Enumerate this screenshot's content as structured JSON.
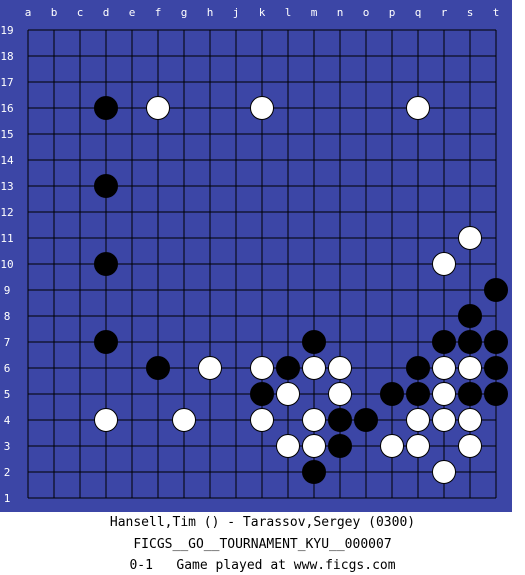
{
  "board": {
    "size": 19,
    "columns": [
      "a",
      "b",
      "c",
      "d",
      "e",
      "f",
      "g",
      "h",
      "j",
      "k",
      "l",
      "m",
      "n",
      "o",
      "p",
      "q",
      "r",
      "s",
      "t"
    ],
    "rows": [
      "19",
      "18",
      "17",
      "16",
      "15",
      "14",
      "13",
      "12",
      "11",
      "10",
      "9",
      "8",
      "7",
      "6",
      "5",
      "4",
      "3",
      "2",
      "1"
    ],
    "colors": {
      "frame": "#3c46a6",
      "grid": "#000000",
      "black_stone": "#000000",
      "white_stone": "#ffffff"
    },
    "stones": [
      {
        "color": "black",
        "point": "d16"
      },
      {
        "color": "white",
        "point": "f16"
      },
      {
        "color": "white",
        "point": "k16"
      },
      {
        "color": "white",
        "point": "q16"
      },
      {
        "color": "black",
        "point": "d13"
      },
      {
        "color": "white",
        "point": "s11"
      },
      {
        "color": "black",
        "point": "d10"
      },
      {
        "color": "white",
        "point": "r10"
      },
      {
        "color": "black",
        "point": "t9"
      },
      {
        "color": "black",
        "point": "s8"
      },
      {
        "color": "black",
        "point": "d7"
      },
      {
        "color": "black",
        "point": "m7"
      },
      {
        "color": "black",
        "point": "r7"
      },
      {
        "color": "black",
        "point": "s7"
      },
      {
        "color": "black",
        "point": "t7"
      },
      {
        "color": "black",
        "point": "f6"
      },
      {
        "color": "white",
        "point": "h6"
      },
      {
        "color": "white",
        "point": "k6"
      },
      {
        "color": "black",
        "point": "l6"
      },
      {
        "color": "white",
        "point": "m6"
      },
      {
        "color": "white",
        "point": "n6"
      },
      {
        "color": "black",
        "point": "q6"
      },
      {
        "color": "white",
        "point": "r6"
      },
      {
        "color": "white",
        "point": "s6"
      },
      {
        "color": "black",
        "point": "t6"
      },
      {
        "color": "black",
        "point": "k5"
      },
      {
        "color": "white",
        "point": "l5"
      },
      {
        "color": "white",
        "point": "n5"
      },
      {
        "color": "black",
        "point": "p5"
      },
      {
        "color": "black",
        "point": "q5"
      },
      {
        "color": "white",
        "point": "r5"
      },
      {
        "color": "black",
        "point": "s5"
      },
      {
        "color": "black",
        "point": "t5"
      },
      {
        "color": "white",
        "point": "d4"
      },
      {
        "color": "white",
        "point": "g4"
      },
      {
        "color": "white",
        "point": "k4"
      },
      {
        "color": "white",
        "point": "m4"
      },
      {
        "color": "black",
        "point": "n4"
      },
      {
        "color": "black",
        "point": "o4"
      },
      {
        "color": "white",
        "point": "q4"
      },
      {
        "color": "white",
        "point": "r4"
      },
      {
        "color": "white",
        "point": "s4"
      },
      {
        "color": "white",
        "point": "l3"
      },
      {
        "color": "white",
        "point": "m3"
      },
      {
        "color": "black",
        "point": "n3"
      },
      {
        "color": "white",
        "point": "p3"
      },
      {
        "color": "white",
        "point": "q3"
      },
      {
        "color": "white",
        "point": "s3"
      },
      {
        "color": "black",
        "point": "m2"
      },
      {
        "color": "white",
        "point": "r2"
      }
    ]
  },
  "footer": {
    "players": "Hansell,Tim () - Tarassov,Sergey (0300)",
    "event": "FICGS__GO__TOURNAMENT_KYU__000007",
    "result_line": "0-1   Game played at www.ficgs.com"
  }
}
